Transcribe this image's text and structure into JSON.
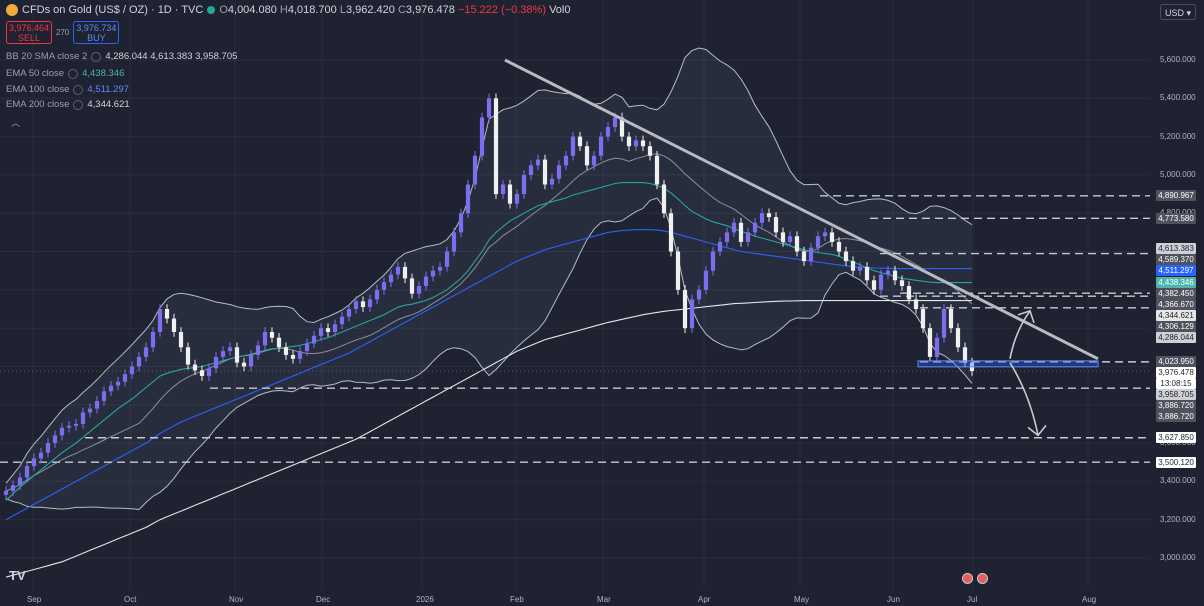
{
  "header": {
    "symbol": "CFDs on Gold (US$ / OZ) · 1D · TVC",
    "open_label": "O",
    "open": "4,004.080",
    "high_label": "H",
    "high": "4,018.700",
    "low_label": "L",
    "low": "3,962.420",
    "close_label": "C",
    "close": "3,976.478",
    "change": "−15.222 (−0.38%)",
    "vol": "Vol0"
  },
  "trade": {
    "sell_price": "3,976.464",
    "sell_label": "SELL",
    "spread": "270",
    "buy_price": "3,976.734",
    "buy_label": "BUY"
  },
  "indicators": [
    {
      "name": "BB 20 SMA close 2",
      "value": "4,286.044  4,613.383  3,958.705",
      "color": "#d1d4dc"
    },
    {
      "name": "EMA 50 close",
      "value": "4,438.346",
      "color": "#4db6ac"
    },
    {
      "name": "EMA 100 close",
      "value": "4,511.297",
      "color": "#5b8cff"
    },
    {
      "name": "EMA 200 close",
      "value": "4,344.621",
      "color": "#e6e6e6"
    }
  ],
  "currency": "USD",
  "chart_data": {
    "type": "candlestick",
    "y_axis_ticks": [
      "5,600.000",
      "5,400.000",
      "5,200.000",
      "5,000.000",
      "4,800.000",
      "4,600.000",
      "4,400.000",
      "4,200.000",
      "4,000.000",
      "3,800.000",
      "3,600.000",
      "3,400.000",
      "3,200.000",
      "3,000.000"
    ],
    "y_tick_values": [
      5600,
      5400,
      5200,
      5000,
      4800,
      4600,
      4400,
      4200,
      4000,
      3800,
      3600,
      3400,
      3200,
      3000
    ],
    "x_axis_labels": [
      "Sep",
      "Oct",
      "Nov",
      "Dec",
      "2026",
      "Feb",
      "Mar",
      "Apr",
      "May",
      "Jun",
      "Jul",
      "Aug"
    ],
    "price_tags": [
      {
        "value": 4890.967,
        "label": "4,890.967",
        "color": "#50535e",
        "text": "#ffffff"
      },
      {
        "value": 4773.58,
        "label": "4,773.580",
        "color": "#50535e",
        "text": "#ffffff"
      },
      {
        "value": 4613.383,
        "label": "4,613.383",
        "color": "#cfd0d6",
        "text": "#1f2230"
      },
      {
        "value": 4589.37,
        "label": "4,589.370",
        "color": "#50535e",
        "text": "#ffffff"
      },
      {
        "value": 4511.297,
        "label": "4,511.297",
        "color": "#2962ff",
        "text": "#ffffff"
      },
      {
        "value": 4438.346,
        "label": "4,438.346",
        "color": "#4db6ac",
        "text": "#ffffff"
      },
      {
        "value": 4382.45,
        "label": "4,382.450",
        "color": "#50535e",
        "text": "#ffffff"
      },
      {
        "value": 4366.67,
        "label": "4,366.670",
        "color": "#50535e",
        "text": "#ffffff"
      },
      {
        "value": 4344.621,
        "label": "4,344.621",
        "color": "#e6e6e6",
        "text": "#1f2230"
      },
      {
        "value": 4306.129,
        "label": "4,306.129",
        "color": "#50535e",
        "text": "#ffffff"
      },
      {
        "value": 4286.044,
        "label": "4,286.044",
        "color": "#cfd0d6",
        "text": "#1f2230"
      },
      {
        "value": 4023.95,
        "label": "4,023.950",
        "color": "#50535e",
        "text": "#ffffff"
      },
      {
        "value": 3976.478,
        "label": "3,976.478",
        "color": "#ffffff",
        "text": "#1f2230"
      },
      {
        "value": 3962.0,
        "label": "13:08:15",
        "color": "#ffffff",
        "text": "#1f2230"
      },
      {
        "value": 3958.705,
        "label": "3,958.705",
        "color": "#cfd0d6",
        "text": "#1f2230"
      },
      {
        "value": 3886.72,
        "label": "3,886.720",
        "color": "#50535e",
        "text": "#ffffff"
      },
      {
        "value": 3886.72,
        "label": "3,886.720",
        "color": "#50535e",
        "text": "#ffffff"
      },
      {
        "value": 3627.85,
        "label": "3,627.850",
        "color": "#ffffff",
        "text": "#1f2230"
      },
      {
        "value": 3500.12,
        "label": "3,500.120",
        "color": "#ffffff",
        "text": "#1f2230"
      }
    ],
    "horizontal_levels": [
      4890.967,
      4773.58,
      4589.37,
      4382.45,
      4366.67,
      4306.129,
      4023.95,
      3886.72,
      3627.85,
      3500.12
    ],
    "trendline": {
      "from": [
        "Feb",
        5600
      ],
      "to": [
        "Jul",
        4040
      ]
    },
    "close_series": [
      3350,
      3380,
      3420,
      3480,
      3520,
      3550,
      3600,
      3640,
      3680,
      3690,
      3700,
      3760,
      3780,
      3820,
      3870,
      3900,
      3920,
      3960,
      4000,
      4050,
      4100,
      4180,
      4300,
      4250,
      4180,
      4100,
      4010,
      3980,
      3950,
      3990,
      4050,
      4080,
      4100,
      4020,
      4000,
      4060,
      4110,
      4180,
      4150,
      4100,
      4060,
      4040,
      4080,
      4120,
      4160,
      4200,
      4180,
      4220,
      4260,
      4300,
      4340,
      4310,
      4350,
      4400,
      4440,
      4480,
      4520,
      4460,
      4380,
      4420,
      4470,
      4500,
      4520,
      4600,
      4700,
      4800,
      4950,
      5100,
      5300,
      5400,
      4900,
      4950,
      4850,
      4900,
      5000,
      5050,
      5080,
      4950,
      4980,
      5050,
      5100,
      5200,
      5150,
      5050,
      5100,
      5200,
      5250,
      5300,
      5200,
      5150,
      5180,
      5150,
      5100,
      4950,
      4800,
      4600,
      4400,
      4200,
      4350,
      4400,
      4500,
      4600,
      4650,
      4700,
      4750,
      4650,
      4700,
      4750,
      4800,
      4780,
      4700,
      4650,
      4680,
      4600,
      4550,
      4620,
      4680,
      4700,
      4650,
      4600,
      4550,
      4500,
      4520,
      4450,
      4400,
      4480,
      4500,
      4450,
      4420,
      4350,
      4300,
      4200,
      4050,
      4150,
      4300,
      4200,
      4100,
      4020,
      3976
    ],
    "ema50": [
      3300,
      3335,
      3370,
      3400,
      3430,
      3460,
      3490,
      3520,
      3550,
      3575,
      3600,
      3630,
      3660,
      3690,
      3720,
      3750,
      3780,
      3805,
      3830,
      3860,
      3890,
      3920,
      3950,
      3965,
      3975,
      3985,
      3990,
      3995,
      4000,
      4010,
      4020,
      4030,
      4040,
      4050,
      4055,
      4060,
      4070,
      4080,
      4090,
      4095,
      4100,
      4105,
      4110,
      4120,
      4130,
      4140,
      4150,
      4165,
      4180,
      4195,
      4210,
      4225,
      4240,
      4255,
      4270,
      4290,
      4310,
      4320,
      4325,
      4335,
      4345,
      4360,
      4380,
      4400,
      4430,
      4460,
      4500,
      4550,
      4600,
      4660,
      4700,
      4730,
      4760,
      4780,
      4800,
      4820,
      4840,
      4850,
      4860,
      4870,
      4880,
      4895,
      4905,
      4915,
      4925,
      4935,
      4945,
      4955,
      4960,
      4960,
      4960,
      4960,
      4955,
      4945,
      4930,
      4905,
      4875,
      4840,
      4810,
      4790,
      4770,
      4755,
      4745,
      4735,
      4720,
      4705,
      4695,
      4680,
      4670,
      4660,
      4650,
      4640,
      4630,
      4620,
      4610,
      4600,
      4595,
      4590,
      4585,
      4575,
      4560,
      4545,
      4530,
      4515,
      4500,
      4490,
      4480,
      4470,
      4460,
      4455,
      4450,
      4445,
      4440,
      4438,
      4438,
      4438,
      4438,
      4438,
      4438
    ],
    "ema100": [
      3200,
      3220,
      3240,
      3260,
      3280,
      3300,
      3320,
      3340,
      3360,
      3380,
      3400,
      3420,
      3440,
      3460,
      3480,
      3500,
      3520,
      3540,
      3560,
      3580,
      3600,
      3625,
      3650,
      3670,
      3690,
      3710,
      3725,
      3740,
      3755,
      3770,
      3785,
      3800,
      3815,
      3830,
      3845,
      3860,
      3875,
      3890,
      3905,
      3920,
      3935,
      3950,
      3965,
      3980,
      3995,
      4010,
      4025,
      4040,
      4055,
      4070,
      4090,
      4110,
      4130,
      4150,
      4170,
      4190,
      4210,
      4230,
      4250,
      4270,
      4290,
      4310,
      4330,
      4350,
      4370,
      4390,
      4410,
      4430,
      4450,
      4470,
      4490,
      4510,
      4530,
      4550,
      4565,
      4580,
      4595,
      4610,
      4620,
      4630,
      4640,
      4650,
      4660,
      4670,
      4680,
      4690,
      4700,
      4705,
      4710,
      4712,
      4714,
      4715,
      4714,
      4712,
      4708,
      4700,
      4690,
      4680,
      4670,
      4660,
      4650,
      4640,
      4630,
      4620,
      4610,
      4600,
      4595,
      4590,
      4585,
      4580,
      4575,
      4570,
      4565,
      4560,
      4555,
      4550,
      4545,
      4540,
      4535,
      4530,
      4525,
      4520,
      4518,
      4516,
      4514,
      4513,
      4512,
      4511,
      4511,
      4511,
      4511,
      4511,
      4511,
      4511,
      4511,
      4511,
      4511,
      4511,
      4511
    ],
    "ema200": [
      2900,
      2910,
      2920,
      2930,
      2940,
      2950,
      2960,
      2970,
      2980,
      2995,
      3010,
      3025,
      3040,
      3055,
      3070,
      3085,
      3100,
      3115,
      3130,
      3145,
      3160,
      3180,
      3200,
      3215,
      3230,
      3245,
      3260,
      3275,
      3290,
      3305,
      3320,
      3335,
      3350,
      3365,
      3380,
      3395,
      3410,
      3425,
      3440,
      3455,
      3470,
      3485,
      3500,
      3515,
      3530,
      3545,
      3560,
      3575,
      3590,
      3605,
      3620,
      3640,
      3660,
      3680,
      3700,
      3720,
      3740,
      3760,
      3780,
      3800,
      3820,
      3840,
      3860,
      3880,
      3900,
      3920,
      3940,
      3960,
      3980,
      4000,
      4020,
      4040,
      4060,
      4080,
      4095,
      4110,
      4125,
      4140,
      4150,
      4160,
      4170,
      4180,
      4190,
      4200,
      4210,
      4220,
      4230,
      4238,
      4246,
      4254,
      4262,
      4270,
      4276,
      4282,
      4288,
      4292,
      4296,
      4300,
      4304,
      4308,
      4312,
      4316,
      4320,
      4324,
      4328,
      4330,
      4332,
      4334,
      4336,
      4338,
      4340,
      4341,
      4342,
      4343,
      4344,
      4344,
      4344,
      4344,
      4344,
      4344,
      4344,
      4344,
      4344,
      4344,
      4344,
      4344,
      4344,
      4344,
      4344,
      4344,
      4344,
      4344,
      4344,
      4344,
      4344,
      4344,
      4344,
      4344,
      4344
    ]
  }
}
